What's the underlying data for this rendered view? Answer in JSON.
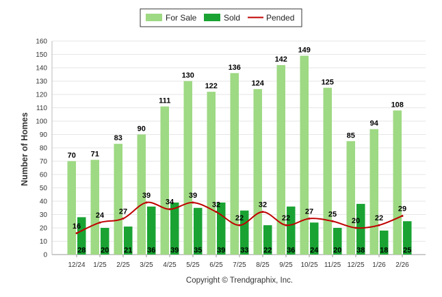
{
  "chart_data": {
    "type": "bar",
    "title": "",
    "xlabel": "",
    "ylabel": "Number of Homes",
    "ylim": [
      0,
      160
    ],
    "ytick_step": 10,
    "yticks": [
      "0",
      "10",
      "20",
      "30",
      "40",
      "50",
      "60",
      "70",
      "80",
      "90",
      "100",
      "110",
      "120",
      "130",
      "140",
      "150",
      "160"
    ],
    "grid": true,
    "legend_position": "top-center",
    "categories": [
      "12/24",
      "1/25",
      "2/25",
      "3/25",
      "4/25",
      "5/25",
      "6/25",
      "7/25",
      "8/25",
      "9/25",
      "10/25",
      "11/25",
      "12/25",
      "1/26",
      "2/26"
    ],
    "series": [
      {
        "name": "For Sale",
        "kind": "bar",
        "color": "#9ed983",
        "values": [
          70,
          71,
          83,
          90,
          111,
          130,
          122,
          136,
          124,
          142,
          149,
          125,
          85,
          94,
          108
        ],
        "labels": [
          "70",
          "71",
          "83",
          "90",
          "111",
          "130",
          "122",
          "136",
          "124",
          "142",
          "149",
          "125",
          "85",
          "94",
          "108"
        ]
      },
      {
        "name": "Sold",
        "kind": "bar",
        "color": "#1aa333",
        "values": [
          28,
          20,
          21,
          36,
          39,
          35,
          39,
          33,
          22,
          36,
          24,
          20,
          38,
          18,
          25
        ],
        "labels": [
          "28",
          "20",
          "21",
          "36",
          "39",
          "35",
          "39",
          "33",
          "22",
          "36",
          "24",
          "20",
          "38",
          "18",
          "25"
        ]
      },
      {
        "name": "Pended",
        "kind": "line",
        "color": "#c00000",
        "values": [
          16,
          24,
          27,
          39,
          34,
          39,
          32,
          22,
          32,
          22,
          27,
          25,
          20,
          22,
          29
        ],
        "labels": [
          "16",
          "24",
          "27",
          "39",
          "34",
          "39",
          "32",
          "22",
          "32",
          "22",
          "27",
          "25",
          "20",
          "22",
          "29"
        ]
      }
    ]
  },
  "copyright": "Copyright © Trendgraphix, Inc."
}
